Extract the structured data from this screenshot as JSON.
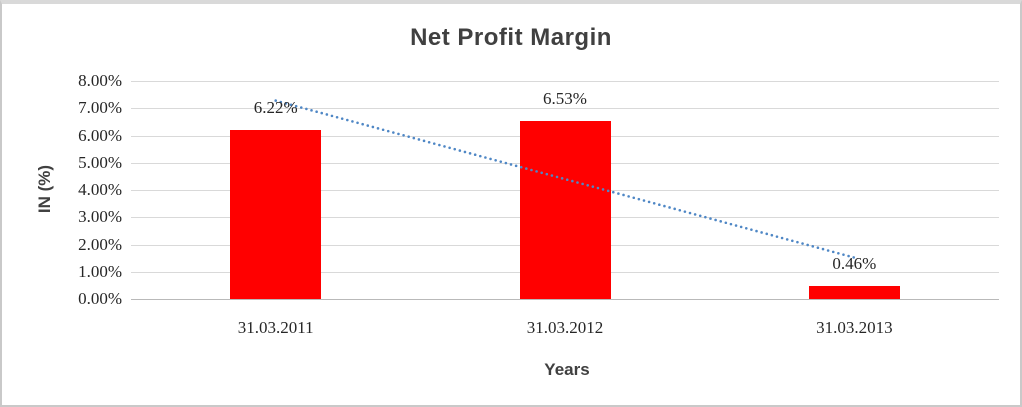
{
  "chart_data": {
    "type": "bar",
    "title": "Net Profit Margin",
    "categories": [
      "31.03.2011",
      "31.03.2012",
      "31.03.2013"
    ],
    "values": [
      6.22,
      6.53,
      0.46
    ],
    "data_labels": [
      "6.22%",
      "6.53%",
      "0.46%"
    ],
    "xlabel": "Years",
    "ylabel": "IN (%)",
    "ylim": [
      0,
      8
    ],
    "ytick_step": 1,
    "ytick_labels": [
      "0.00%",
      "1.00%",
      "2.00%",
      "3.00%",
      "4.00%",
      "5.00%",
      "6.00%",
      "7.00%",
      "8.00%"
    ],
    "grid": true,
    "legend": "none",
    "series_name": "Net Profit Margin",
    "bar_color": "#ff0000",
    "trendline": {
      "type": "linear",
      "style": "dotted",
      "color": "#4f87c5",
      "values": [
        7.28,
        4.4,
        1.52
      ]
    },
    "colors": {
      "title_text": "#404040",
      "tick_text": "#262626",
      "gridline": "#d9d9d9",
      "axis_line": "#b9b9b9"
    }
  }
}
